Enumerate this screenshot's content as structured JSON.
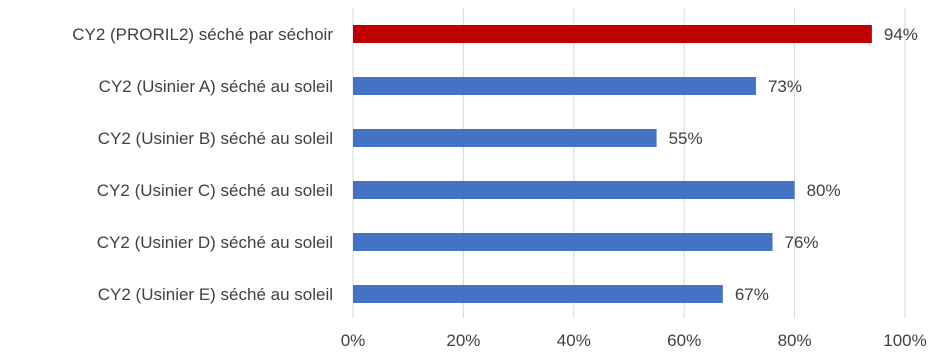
{
  "chart_data": {
    "type": "bar",
    "orientation": "horizontal",
    "title": "",
    "xlabel": "",
    "ylabel": "",
    "categories": [
      "CY2 (PRORIL2) séché par séchoir",
      "CY2 (Usinier A) séché au soleil",
      "CY2 (Usinier B) séché au soleil",
      "CY2 (Usinier C) séché au soleil",
      "CY2 (Usinier D) séché au soleil",
      "CY2 (Usinier E) séché au soleil"
    ],
    "values": [
      94,
      73,
      55,
      80,
      76,
      67
    ],
    "value_labels": [
      "94%",
      "73%",
      "55%",
      "80%",
      "76%",
      "67%"
    ],
    "colors": [
      "#c00000",
      "#4472c4",
      "#4472c4",
      "#4472c4",
      "#4472c4",
      "#4472c4"
    ],
    "xlim": [
      0,
      100
    ],
    "xticks": [
      0,
      20,
      40,
      60,
      80,
      100
    ],
    "xtick_labels": [
      "0%",
      "20%",
      "40%",
      "60%",
      "80%",
      "100%"
    ],
    "grid": true,
    "legend": "none"
  }
}
